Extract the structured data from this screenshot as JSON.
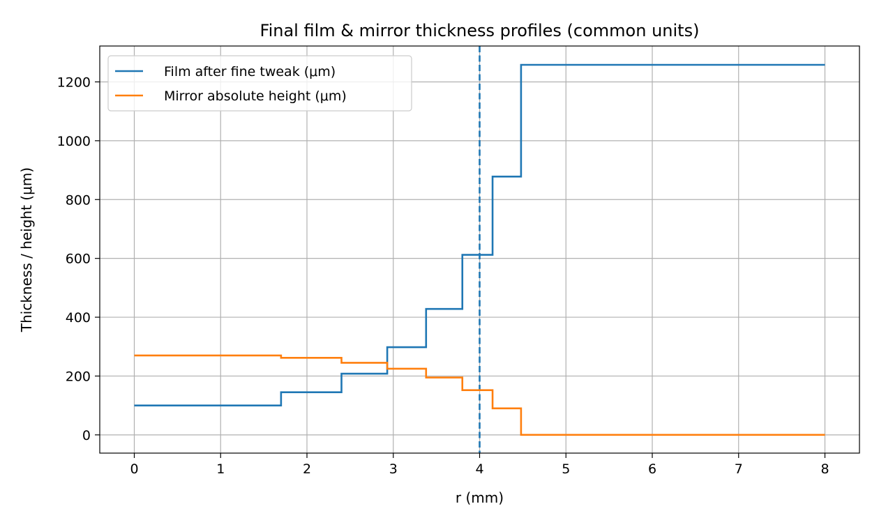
{
  "chart_data": {
    "type": "line",
    "title": "Final film & mirror thickness profiles (common units)",
    "xlabel": "r (mm)",
    "ylabel": "Thickness / height (μm)",
    "xlim": [
      -0.4,
      8.4
    ],
    "ylim": [
      -62,
      1322
    ],
    "xticks": [
      0,
      1,
      2,
      3,
      4,
      5,
      6,
      7,
      8
    ],
    "yticks": [
      0,
      200,
      400,
      600,
      800,
      1000,
      1200
    ],
    "grid": true,
    "legend_position": "upper left",
    "step_style": "post",
    "series": [
      {
        "name": "Film after fine tweak (μm)",
        "color": "#1f77b4",
        "x": [
          0,
          1.7,
          2.4,
          2.93,
          3.38,
          3.8,
          4.15,
          4.48,
          8
        ],
        "y": [
          100,
          145,
          208,
          298,
          428,
          612,
          878,
          1258,
          1258
        ]
      },
      {
        "name": "Mirror absolute height (μm)",
        "color": "#ff7f0e",
        "x": [
          0,
          1.7,
          2.4,
          2.93,
          3.38,
          3.8,
          4.15,
          4.48,
          8
        ],
        "y": [
          270,
          262,
          245,
          225,
          195,
          152,
          90,
          0,
          0
        ]
      }
    ],
    "annotations": [
      {
        "type": "vline",
        "x": 4.0,
        "style": "dashed",
        "color": "#1f77b4"
      }
    ]
  }
}
